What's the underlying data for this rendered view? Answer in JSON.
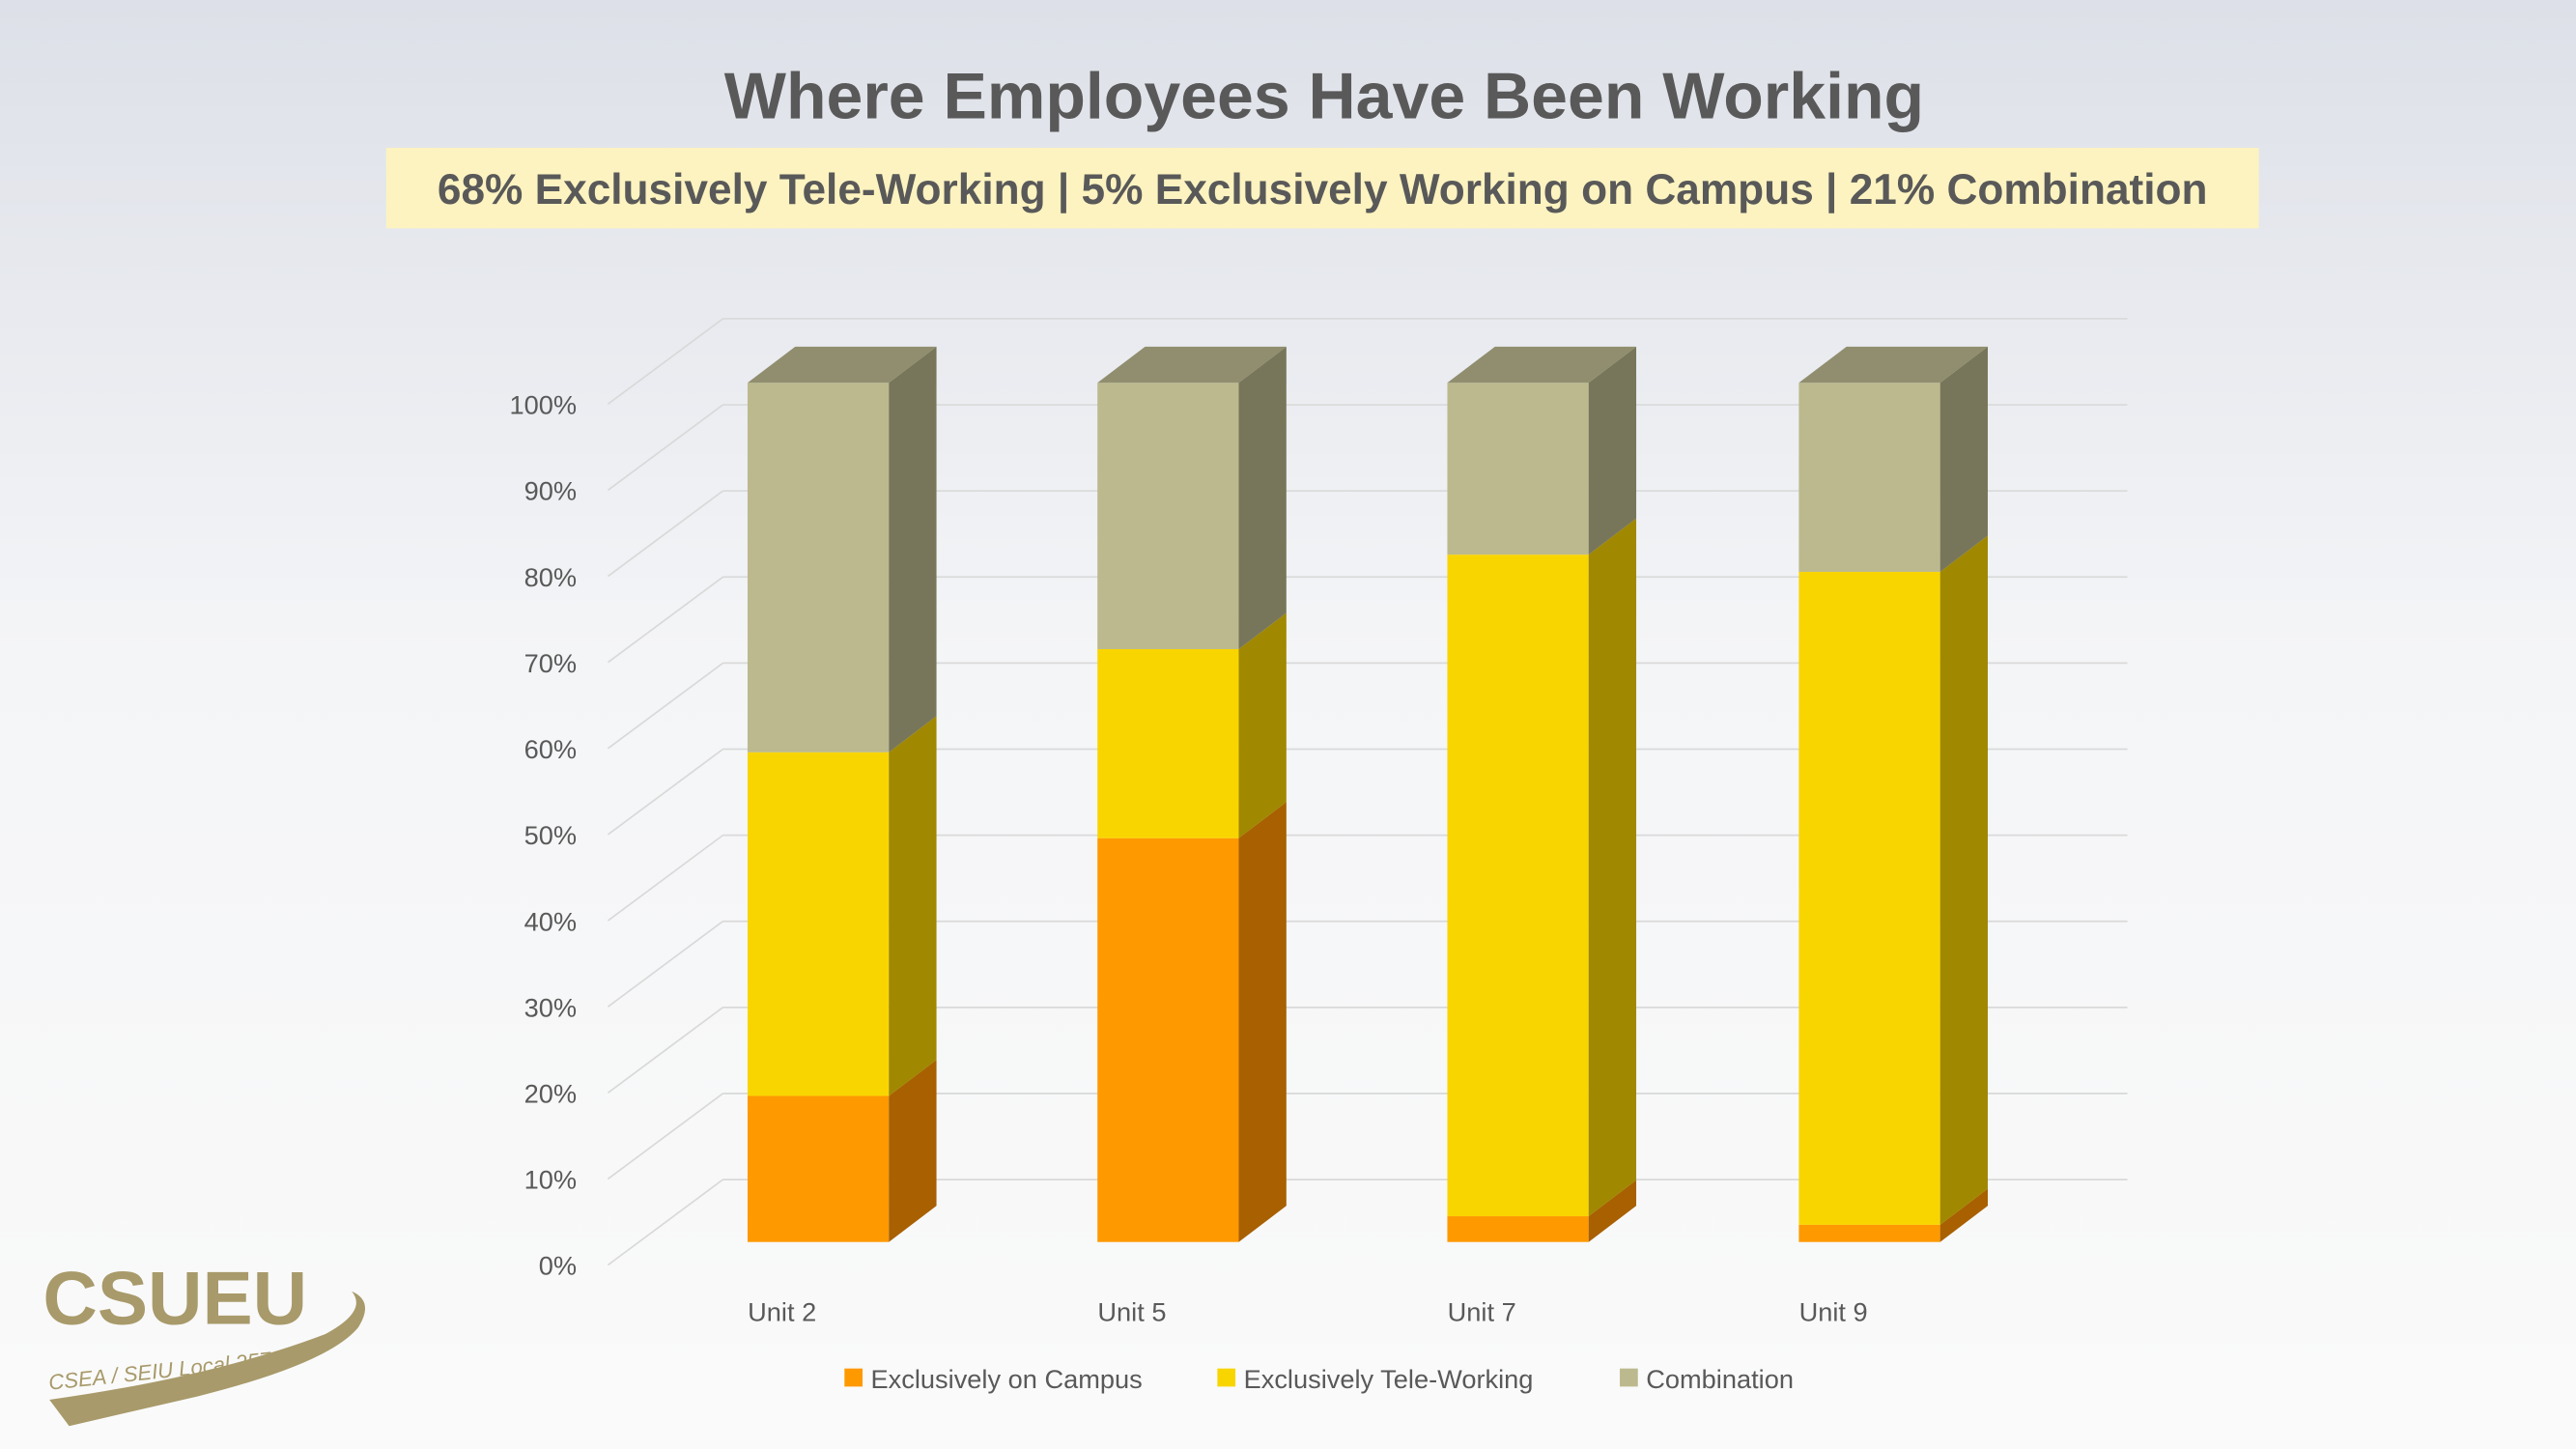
{
  "title": "Where Employees Have Been Working",
  "subtitle": "68% Exclusively Tele-Working | 5% Exclusively Working on Campus | 21% Combination",
  "logo": {
    "main": "CSUEU",
    "sub": "CSEA / SEIU Local 2579"
  },
  "colors": {
    "campus": "#ff9900",
    "campus_side": "#a86000",
    "tele": "#f9d500",
    "tele_side": "#a08800",
    "combo": "#bcb98e",
    "combo_side": "#78765a",
    "combo_top": "#908e6e",
    "subtitle_bg": "#fdf3c0"
  },
  "chart_data": {
    "type": "bar",
    "stacked": "percent",
    "three_d": true,
    "categories": [
      "Unit 2",
      "Unit 5",
      "Unit 7",
      "Unit 9"
    ],
    "series": [
      {
        "name": "Exclusively on Campus",
        "values": [
          17,
          47,
          3,
          2
        ]
      },
      {
        "name": "Exclusively Tele-Working",
        "values": [
          40,
          22,
          77,
          76
        ]
      },
      {
        "name": "Combination",
        "values": [
          43,
          31,
          20,
          22
        ]
      }
    ],
    "ylim": [
      0,
      100
    ],
    "yticks": [
      "0%",
      "10%",
      "20%",
      "30%",
      "40%",
      "50%",
      "60%",
      "70%",
      "80%",
      "90%",
      "100%"
    ],
    "grid": true,
    "legend": "bottom",
    "xlabel": "",
    "ylabel": ""
  }
}
